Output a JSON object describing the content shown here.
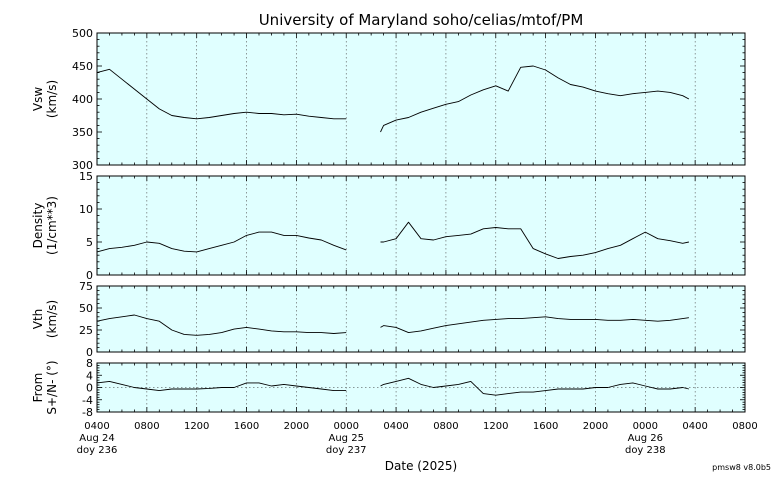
{
  "figure": {
    "title": "University of Maryland  soho/celias/mtof/PM",
    "xlabel": "Date (2025)",
    "version": "pmsw8 v8.0b5",
    "background": "#e0ffff",
    "line_color": "#000000",
    "x_tick_labels": [
      "0400",
      "0800",
      "1200",
      "1600",
      "2000",
      "0000",
      "0400",
      "0800",
      "1200",
      "1600",
      "2000",
      "0000",
      "0400",
      "0800"
    ],
    "date_labels": [
      {
        "hour": 0,
        "line1": "Aug 24",
        "line2": "doy 236"
      },
      {
        "hour": 20,
        "line1": "Aug 25",
        "line2": "doy 237"
      },
      {
        "hour": 44,
        "line1": "Aug 26",
        "line2": "doy 238"
      }
    ],
    "x_start": "2025-08-24 04:00",
    "x_end": "2025-08-26 08:00",
    "data_gap": [
      "2025-08-25 00:00",
      "2025-08-25 02:45"
    ]
  },
  "chart_data": [
    {
      "type": "line",
      "name": "Vsw",
      "ylabel": "Vsw\n(km/s)",
      "ylim": [
        300,
        500
      ],
      "yticks": [
        300,
        350,
        400,
        450,
        500
      ],
      "grid": "vertical dotted",
      "x_hours": [
        0,
        1,
        2,
        3,
        4,
        5,
        6,
        7,
        8,
        9,
        10,
        11,
        12,
        13,
        14,
        15,
        16,
        17,
        18,
        19,
        20,
        "gap",
        22.75,
        23,
        24,
        25,
        26,
        27,
        28,
        29,
        30,
        31,
        32,
        33,
        34,
        35,
        36,
        37,
        38,
        39,
        40,
        41,
        42,
        43,
        44,
        45,
        46,
        47,
        47.5
      ],
      "values": [
        440,
        445,
        430,
        415,
        400,
        385,
        375,
        372,
        370,
        372,
        375,
        378,
        380,
        378,
        378,
        376,
        377,
        374,
        372,
        370,
        370,
        null,
        350,
        360,
        368,
        372,
        380,
        386,
        392,
        396,
        406,
        414,
        420,
        412,
        448,
        450,
        444,
        432,
        422,
        418,
        412,
        408,
        405,
        408,
        410,
        412,
        410,
        405,
        400
      ]
    },
    {
      "type": "line",
      "name": "Density",
      "ylabel": "Density\n(1/cm**3)",
      "ylim": [
        0,
        15
      ],
      "yticks": [
        0,
        5,
        10,
        15
      ],
      "grid": "vertical dotted",
      "x_hours": [
        0,
        1,
        2,
        3,
        4,
        5,
        6,
        7,
        8,
        9,
        10,
        11,
        12,
        13,
        14,
        15,
        16,
        17,
        18,
        19,
        20,
        "gap",
        22.75,
        23,
        24,
        25,
        26,
        27,
        28,
        29,
        30,
        31,
        32,
        33,
        34,
        35,
        36,
        37,
        38,
        39,
        40,
        41,
        42,
        43,
        44,
        45,
        46,
        47,
        47.5
      ],
      "values": [
        3.5,
        4,
        4.2,
        4.5,
        5,
        4.8,
        4,
        3.6,
        3.5,
        4,
        4.5,
        5,
        6,
        6.5,
        6.5,
        6,
        6,
        5.6,
        5.3,
        4.5,
        3.8,
        null,
        5,
        5,
        5.5,
        8,
        5.5,
        5.3,
        5.8,
        6,
        6.2,
        7,
        7.2,
        7,
        7,
        4,
        3.2,
        2.5,
        2.8,
        3,
        3.4,
        4,
        4.5,
        5.5,
        6.5,
        5.5,
        5.2,
        4.8,
        5
      ]
    },
    {
      "type": "line",
      "name": "Vth",
      "ylabel": "Vth\n(km/s)",
      "ylim": [
        0,
        75
      ],
      "yticks": [
        0,
        25,
        50,
        75
      ],
      "grid": "vertical dotted",
      "x_hours": [
        0,
        1,
        2,
        3,
        4,
        5,
        6,
        7,
        8,
        9,
        10,
        11,
        12,
        13,
        14,
        15,
        16,
        17,
        18,
        19,
        20,
        "gap",
        22.75,
        23,
        24,
        25,
        26,
        27,
        28,
        29,
        30,
        31,
        32,
        33,
        34,
        35,
        36,
        37,
        38,
        39,
        40,
        41,
        42,
        43,
        44,
        45,
        46,
        47,
        47.5
      ],
      "values": [
        35,
        38,
        40,
        42,
        38,
        35,
        25,
        20,
        19,
        20,
        22,
        26,
        28,
        26,
        24,
        23,
        23,
        22,
        22,
        21,
        22,
        null,
        28,
        30,
        28,
        22,
        24,
        27,
        30,
        32,
        34,
        36,
        37,
        38,
        38,
        39,
        40,
        38,
        37,
        37,
        37,
        36,
        36,
        37,
        36,
        35,
        36,
        38,
        39
      ]
    },
    {
      "type": "line",
      "name": "From S+/N- (°)",
      "ylabel": "From\nS+/N- (°)",
      "ylim": [
        -8,
        8
      ],
      "yticks": [
        -8,
        -4,
        0,
        4,
        8
      ],
      "grid": "vertical dotted, dashed zero line",
      "x_hours": [
        0,
        1,
        2,
        3,
        4,
        5,
        6,
        7,
        8,
        9,
        10,
        11,
        12,
        13,
        14,
        15,
        16,
        17,
        18,
        19,
        20,
        "gap",
        22.75,
        23,
        24,
        25,
        26,
        27,
        28,
        29,
        30,
        31,
        32,
        33,
        34,
        35,
        36,
        37,
        38,
        39,
        40,
        41,
        42,
        43,
        44,
        45,
        46,
        47,
        47.5
      ],
      "values": [
        1.5,
        2,
        1,
        0,
        -0.5,
        -1,
        -0.5,
        -0.5,
        -0.5,
        -0.3,
        0,
        0,
        1.5,
        1.5,
        0.5,
        1,
        0.5,
        0,
        -0.5,
        -1,
        -1,
        null,
        0.5,
        1,
        2,
        3,
        1,
        0,
        0.5,
        1,
        2,
        -2,
        -2.5,
        -2,
        -1.5,
        -1.5,
        -1,
        -0.5,
        -0.5,
        -0.5,
        0,
        0,
        1,
        1.5,
        0.5,
        -0.5,
        -0.5,
        0,
        -0.5
      ]
    }
  ]
}
